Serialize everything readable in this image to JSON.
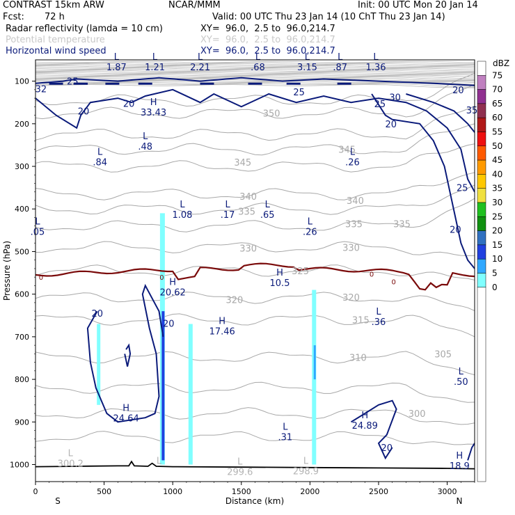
{
  "header": {
    "model": "CONTRAST 15km ARW",
    "org": "NCAR/MMM",
    "init": "Init: 00 UTC Mon 20 Jan 14",
    "fcst_label": "Fcst:",
    "fcst_value": "72 h",
    "valid": "Valid: 00 UTC Thu 23 Jan 14 (10 ChT Thu 23 Jan 14)",
    "fields": [
      {
        "name": "Radar reflectivity (lamda = 10 cm)",
        "xy": "XY=  96.0,  2.5 to  96.0,214.7",
        "color": "#000000"
      },
      {
        "name": "Potential temperature",
        "xy": "XY=  96.0,  2.5 to  96.0,214.7",
        "color": "#c8c8c8"
      },
      {
        "name": "Horizontal wind speed",
        "xy": "XY=  96.0,  2.5 to  96.0,214.7",
        "color": "#0a1a7a"
      }
    ]
  },
  "chart_data": {
    "type": "cross-section",
    "xlabel": "Distance (km)",
    "ylabel": "Pressure (hPa)",
    "xlim": [
      0,
      3200
    ],
    "ylim": [
      1040,
      50
    ],
    "y_log": false,
    "x_ticks": [
      0,
      500,
      1000,
      1500,
      2000,
      2500,
      3000
    ],
    "y_ticks": [
      100,
      200,
      300,
      400,
      500,
      600,
      700,
      800,
      900,
      1000
    ],
    "x_end_labels": {
      "left": "S",
      "right": "N"
    },
    "colorbar": {
      "label": "dBZ",
      "levels": [
        "75",
        "70",
        "65",
        "60",
        "55",
        "50",
        "45",
        "40",
        "35",
        "30",
        "25",
        "20",
        "15",
        "10",
        "5",
        "0"
      ],
      "colors": [
        "#ffffff",
        "#c080c0",
        "#903090",
        "#903050",
        "#b01818",
        "#ee1010",
        "#ff5a00",
        "#ff9a00",
        "#ffc800",
        "#f0e040",
        "#20c020",
        "#109010",
        "#3070c0",
        "#2040e0",
        "#30a8ff",
        "#80ffff"
      ]
    },
    "theta_labels": [
      {
        "x": 1720,
        "p": 175,
        "label": "350"
      },
      {
        "x": 2270,
        "p": 260,
        "label": "345"
      },
      {
        "x": 1510,
        "p": 290,
        "label": "345"
      },
      {
        "x": 2330,
        "p": 380,
        "label": "340"
      },
      {
        "x": 1550,
        "p": 370,
        "label": "340"
      },
      {
        "x": 1540,
        "p": 405,
        "label": "335"
      },
      {
        "x": 2320,
        "p": 435,
        "label": "335"
      },
      {
        "x": 2670,
        "p": 435,
        "label": "335"
      },
      {
        "x": 1550,
        "p": 492,
        "label": "330"
      },
      {
        "x": 2300,
        "p": 490,
        "label": "330"
      },
      {
        "x": 1450,
        "p": 613,
        "label": "320"
      },
      {
        "x": 2300,
        "p": 607,
        "label": "320"
      },
      {
        "x": 2370,
        "p": 660,
        "label": "315"
      },
      {
        "x": 2350,
        "p": 748,
        "label": "310"
      },
      {
        "x": 2970,
        "p": 740,
        "label": "305"
      },
      {
        "x": 2780,
        "p": 880,
        "label": "300"
      },
      {
        "x": 1930,
        "p": 545,
        "label": "325"
      }
    ],
    "wind_labels": [
      {
        "x": 270,
        "p": 100,
        "label": "25"
      },
      {
        "x": 1920,
        "p": 125,
        "label": "25"
      },
      {
        "x": 40,
        "p": 118,
        "label": "32"
      },
      {
        "x": 680,
        "p": 152,
        "label": "20"
      },
      {
        "x": 350,
        "p": 170,
        "label": "20"
      },
      {
        "x": 2620,
        "p": 137,
        "label": "30"
      },
      {
        "x": 2510,
        "p": 153,
        "label": "25"
      },
      {
        "x": 3080,
        "p": 120,
        "label": "20"
      },
      {
        "x": 3180,
        "p": 168,
        "label": "35"
      },
      {
        "x": 2590,
        "p": 200,
        "label": "20"
      },
      {
        "x": 3110,
        "p": 350,
        "label": "25"
      },
      {
        "x": 3060,
        "p": 448,
        "label": "20"
      },
      {
        "x": 450,
        "p": 645,
        "label": "20"
      },
      {
        "x": 970,
        "p": 668,
        "label": "20"
      },
      {
        "x": 2560,
        "p": 960,
        "label": "20"
      }
    ],
    "lows": [
      {
        "x": 590,
        "p": 42,
        "value": "1.87"
      },
      {
        "x": 870,
        "p": 42,
        "value": "1.21"
      },
      {
        "x": 1200,
        "p": 42,
        "value": "2.21"
      },
      {
        "x": 1620,
        "p": 42,
        "value": ".68"
      },
      {
        "x": 1980,
        "p": 42,
        "value": "3.15"
      },
      {
        "x": 2220,
        "p": 42,
        "value": ".87"
      },
      {
        "x": 2480,
        "p": 42,
        "value": "1.36"
      },
      {
        "x": 800,
        "p": 228,
        "value": ".48"
      },
      {
        "x": 470,
        "p": 265,
        "value": ".84"
      },
      {
        "x": 2310,
        "p": 265,
        "value": ".26"
      },
      {
        "x": 1070,
        "p": 388,
        "value": "1.08"
      },
      {
        "x": 1400,
        "p": 388,
        "value": ".17"
      },
      {
        "x": 1690,
        "p": 388,
        "value": ".65"
      },
      {
        "x": 2000,
        "p": 428,
        "value": ".26"
      },
      {
        "x": 15,
        "p": 428,
        "value": ".05"
      },
      {
        "x": 2500,
        "p": 640,
        "value": ".36"
      },
      {
        "x": 3100,
        "p": 780,
        "value": ".50"
      },
      {
        "x": 1820,
        "p": 910,
        "value": ".31"
      },
      {
        "x": 255,
        "p": 972,
        "value": "300.2"
      },
      {
        "x": 900,
        "p": 990,
        "value": ""
      },
      {
        "x": 1490,
        "p": 992,
        "value": "299.6"
      },
      {
        "x": 1970,
        "p": 990,
        "value": "298.9"
      }
    ],
    "highs": [
      {
        "x": 860,
        "p": 148,
        "value": "33.43"
      },
      {
        "x": 1000,
        "p": 570,
        "value": "20.62"
      },
      {
        "x": 1780,
        "p": 548,
        "value": "10.5"
      },
      {
        "x": 1360,
        "p": 662,
        "value": "17.46"
      },
      {
        "x": 660,
        "p": 866,
        "value": "24.64"
      },
      {
        "x": 2400,
        "p": 883,
        "value": "24.89"
      },
      {
        "x": 3090,
        "p": 978,
        "value": "18.9"
      }
    ],
    "zero_label": "0",
    "surface_pressure": [
      [
        0,
        1005
      ],
      [
        300,
        1004
      ],
      [
        600,
        1003
      ],
      [
        680,
        1003
      ],
      [
        700,
        993
      ],
      [
        720,
        1003
      ],
      [
        820,
        1004
      ],
      [
        850,
        997
      ],
      [
        880,
        1004
      ],
      [
        1000,
        1005
      ],
      [
        1500,
        1006
      ],
      [
        2000,
        1007
      ],
      [
        2500,
        1008
      ],
      [
        3000,
        1009
      ],
      [
        3200,
        1010
      ]
    ]
  }
}
